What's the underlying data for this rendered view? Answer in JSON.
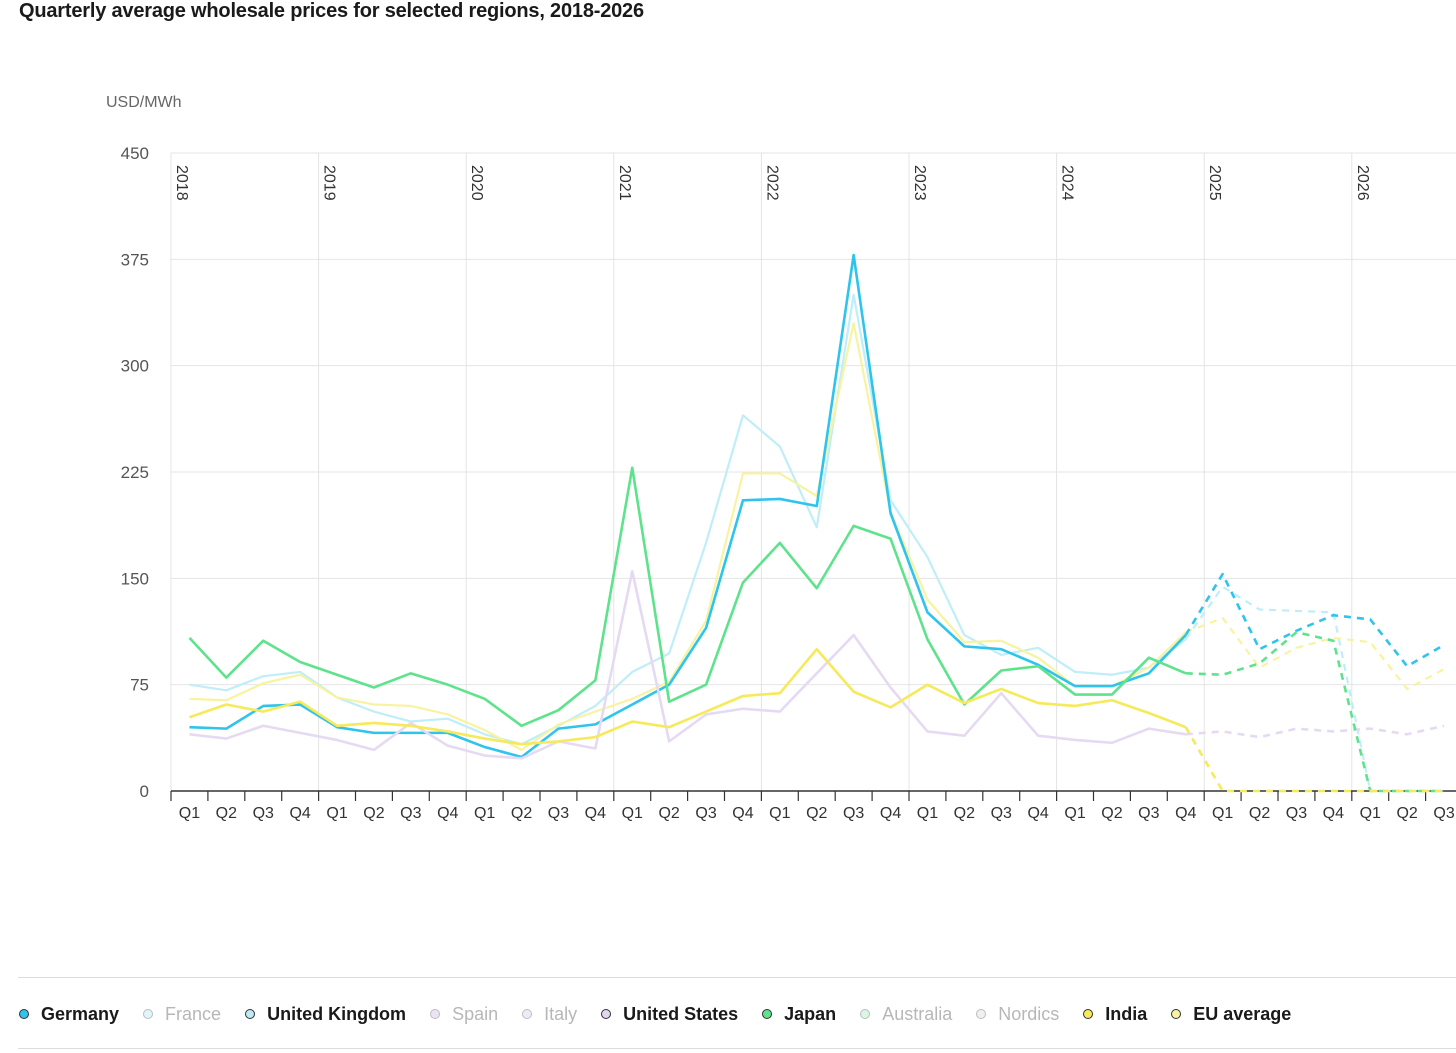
{
  "title": "Quarterly average wholesale prices for selected regions, 2018-2026",
  "chart_data": {
    "type": "line",
    "title": "Quarterly average wholesale prices for selected regions, 2018-2026",
    "ylabel": "USD/MWh",
    "xlabel": "",
    "ylim": [
      0,
      450
    ],
    "yticks": [
      0,
      75,
      150,
      225,
      300,
      375,
      450
    ],
    "years": [
      "2018",
      "2019",
      "2020",
      "2021",
      "2022",
      "2023",
      "2024",
      "2025",
      "2026"
    ],
    "quarters": [
      "Q1",
      "Q2",
      "Q3",
      "Q4",
      "Q1",
      "Q2",
      "Q3",
      "Q4",
      "Q1",
      "Q2",
      "Q3",
      "Q4",
      "Q1",
      "Q2",
      "Q3",
      "Q4",
      "Q1",
      "Q2",
      "Q3",
      "Q4",
      "Q1",
      "Q2",
      "Q3",
      "Q4",
      "Q1",
      "Q2",
      "Q3",
      "Q4",
      "Q1",
      "Q2",
      "Q3",
      "Q4",
      "Q1",
      "Q2",
      "Q3"
    ],
    "forecast_start_index": 27,
    "series": [
      {
        "name": "Germany",
        "color": "#2ec4ec",
        "highlight": true,
        "values": [
          45,
          44,
          60,
          61,
          45,
          41,
          41,
          41,
          31,
          24,
          44,
          47,
          61,
          75,
          115,
          205,
          206,
          201,
          378,
          196,
          126,
          102,
          100,
          89,
          74,
          74,
          83,
          110,
          153,
          100,
          113,
          124,
          121,
          88,
          103
        ]
      },
      {
        "name": "France",
        "color": "#bfeef8",
        "highlight": false,
        "values": [
          75,
          71,
          81,
          84,
          66,
          56,
          49,
          51,
          40,
          33,
          46,
          60,
          84,
          97,
          175,
          265,
          243,
          186,
          350,
          205,
          165,
          110,
          96,
          101,
          84,
          82,
          87,
          107,
          144,
          128,
          127,
          126,
          0,
          0,
          0
        ]
      },
      {
        "name": "United Kingdom",
        "color": "#2ec4ec",
        "highlight": false,
        "values": [
          null
        ]
      },
      {
        "name": "Spain",
        "color": "#e6daf3",
        "highlight": false,
        "values": [
          null
        ]
      },
      {
        "name": "Italy",
        "color": "#e6daf3",
        "highlight": false,
        "values": [
          null
        ]
      },
      {
        "name": "United States",
        "color": "#e6daf3",
        "highlight": true,
        "values": [
          40,
          37,
          46,
          41,
          36,
          29,
          48,
          32,
          25,
          23,
          35,
          30,
          155,
          35,
          54,
          58,
          56,
          83,
          110,
          73,
          42,
          39,
          69,
          39,
          36,
          34,
          44,
          40,
          42,
          38,
          44,
          42,
          44,
          40,
          46
        ]
      },
      {
        "name": "Japan",
        "color": "#5ee38c",
        "highlight": true,
        "values": [
          108,
          80,
          106,
          91,
          82,
          73,
          83,
          75,
          65,
          46,
          57,
          78,
          228,
          63,
          75,
          147,
          175,
          143,
          187,
          178,
          107,
          61,
          85,
          88,
          68,
          68,
          94,
          83,
          82,
          90,
          112,
          106,
          0,
          0,
          0
        ]
      },
      {
        "name": "Australia",
        "color": "#c7f1d6",
        "highlight": false,
        "values": [
          null
        ]
      },
      {
        "name": "Nordics",
        "color": "#e6e6e6",
        "highlight": false,
        "values": [
          null
        ]
      },
      {
        "name": "India",
        "color": "#f6e95a",
        "highlight": true,
        "values": [
          52,
          61,
          56,
          63,
          46,
          48,
          46,
          42,
          37,
          33,
          35,
          38,
          49,
          45,
          56,
          67,
          69,
          100,
          70,
          59,
          75,
          62,
          72,
          62,
          60,
          64,
          55,
          45,
          0,
          0,
          0,
          0,
          0,
          0,
          0
        ]
      },
      {
        "name": "EU average",
        "color": "#f8f3a0",
        "highlight": false,
        "values": [
          65,
          64,
          76,
          82,
          66,
          61,
          60,
          54,
          43,
          29,
          47,
          56,
          65,
          77,
          120,
          224,
          224,
          208,
          330,
          197,
          135,
          105,
          106,
          94,
          74,
          74,
          87,
          112,
          122,
          87,
          101,
          108,
          105,
          72,
          86
        ]
      }
    ],
    "legend_position": "bottom"
  },
  "legend": [
    {
      "label": "Germany",
      "color": "#2ec4ec",
      "active": true
    },
    {
      "label": "France",
      "color": "#dff6fb",
      "active": false
    },
    {
      "label": "United Kingdom",
      "color": "#bfe9f5",
      "active": true
    },
    {
      "label": "Spain",
      "color": "#ece3f7",
      "active": false
    },
    {
      "label": "Italy",
      "color": "#f0eaf8",
      "active": false
    },
    {
      "label": "United States",
      "color": "#e3d6f2",
      "active": true
    },
    {
      "label": "Japan",
      "color": "#5ee38c",
      "active": true
    },
    {
      "label": "Australia",
      "color": "#d9f6e3",
      "active": false
    },
    {
      "label": "Nordics",
      "color": "#f0f0f0",
      "active": false
    },
    {
      "label": "India",
      "color": "#f6e95a",
      "active": true
    },
    {
      "label": "EU average",
      "color": "#f8f3a0",
      "active": true
    }
  ]
}
